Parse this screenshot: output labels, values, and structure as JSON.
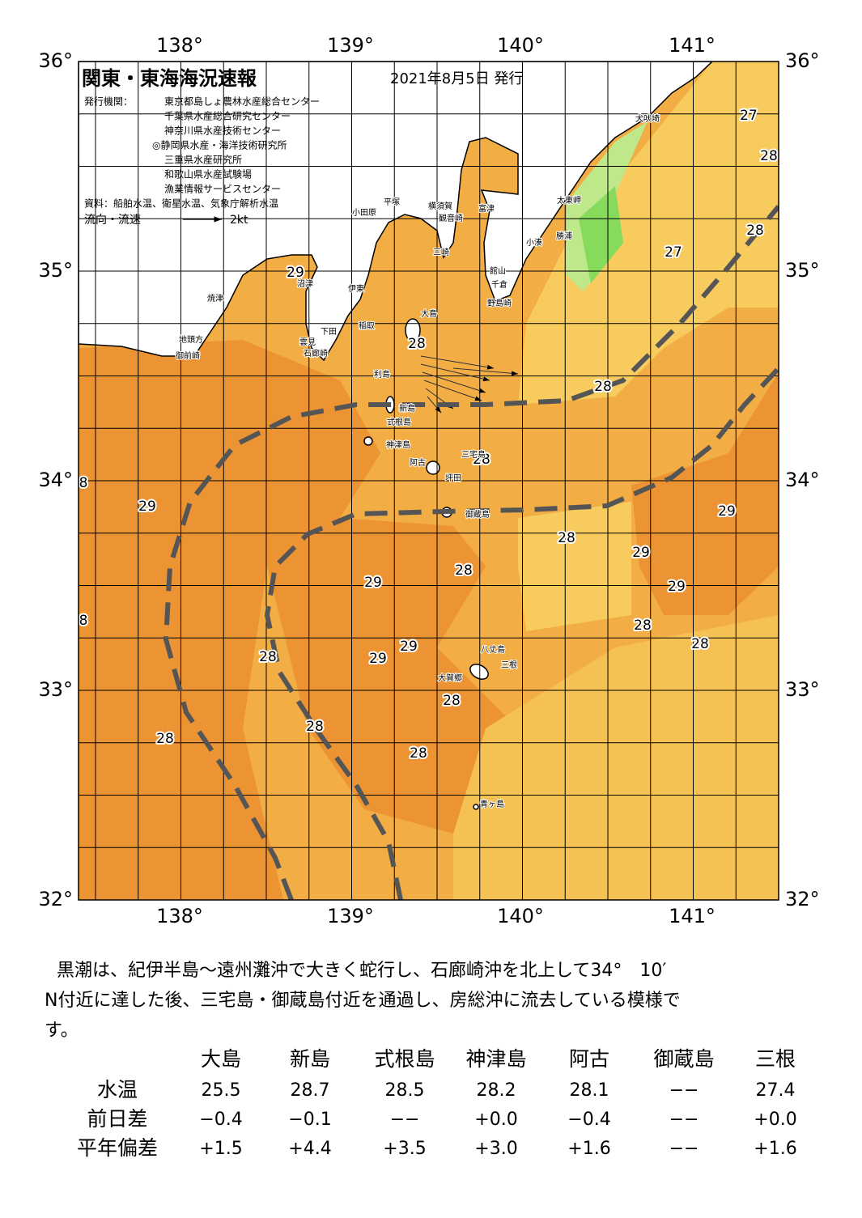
{
  "header": {
    "title": "関東・東海海況速報",
    "date": "2021年8月5日 発行"
  },
  "issuers": {
    "label": "発行機関：",
    "names": [
      "東京都島しょ農林水産総合センター",
      "千葉県水産総合研究センター",
      "神奈川県水産技術センター",
      "◎静岡県水産・海洋技術研究所",
      "三重県水産研究所",
      "和歌山県水産試験場",
      "漁業情報サービスセンター"
    ]
  },
  "source": "資料：船舶水温、衛星水温、気象庁解析水温",
  "legend": {
    "label": "流向・流速",
    "scale": "2kt"
  },
  "map": {
    "longitudes": [
      "138°",
      "139°",
      "140°",
      "141°"
    ],
    "latitudes": [
      "36°",
      "35°",
      "34°",
      "33°",
      "32°"
    ],
    "temperature_labels": [
      27,
      28,
      28,
      27,
      29,
      28,
      28,
      28,
      8,
      29,
      29,
      28,
      29,
      28,
      29,
      29,
      8,
      28,
      28,
      29,
      28,
      29,
      28,
      28,
      28,
      28
    ],
    "places": [
      "犬吠埼",
      "太東岬",
      "小湊",
      "勝浦",
      "館山",
      "千倉",
      "野島崎",
      "富津",
      "観音崎",
      "横須賀",
      "平塚",
      "小田原",
      "三崎",
      "伊東",
      "大島",
      "稲取",
      "下田",
      "雲見",
      "石廊崎",
      "地頭方",
      "御前崎",
      "焼津",
      "沼津",
      "利島",
      "新島",
      "式根島",
      "神津島",
      "三宅島",
      "阿古",
      "坪田",
      "御蔵島",
      "八丈島",
      "三根",
      "大賀郷",
      "青ヶ島"
    ]
  },
  "summary": {
    "lines": [
      "黒潮は、紀伊半島～遠州灘沖で大きく蛇行し、石廊崎沖を北上して34°　10′",
      "N付近に達した後、三宅島・御蔵島付近を通過し、房総沖に流去している模様で",
      "す。"
    ]
  },
  "table": {
    "columns": [
      "大島",
      "新島",
      "式根島",
      "神津島",
      "阿古",
      "御蔵島",
      "三根"
    ],
    "rows": [
      {
        "label": "水温",
        "values": [
          "25.5",
          "28.7",
          "28.5",
          "28.2",
          "28.1",
          "−−",
          "27.4"
        ]
      },
      {
        "label": "前日差",
        "values": [
          "−0.4",
          "−0.1",
          "−−",
          "+0.0",
          "−0.4",
          "−−",
          "+0.0"
        ]
      },
      {
        "label": "平年偏差",
        "values": [
          "+1.5",
          "+4.4",
          "+3.5",
          "+3.0",
          "+1.6",
          "−−",
          "+1.6"
        ]
      }
    ]
  }
}
